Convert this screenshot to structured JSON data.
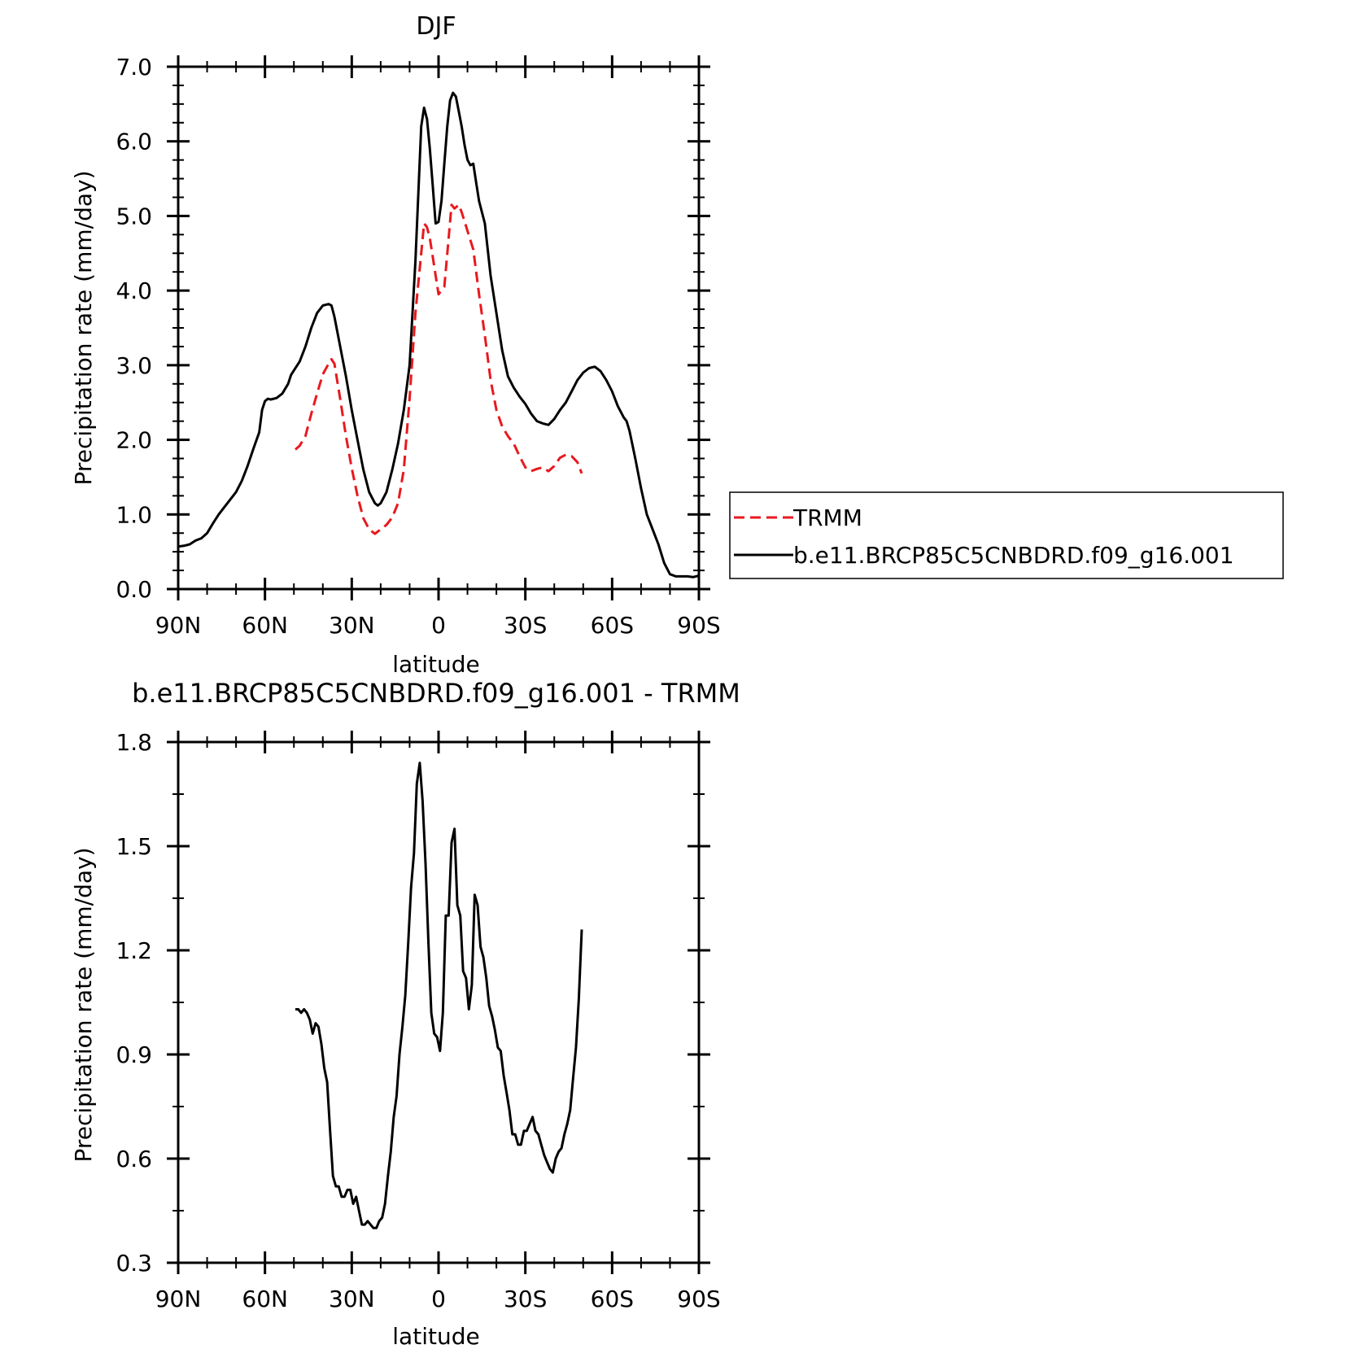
{
  "chart_data": [
    {
      "type": "line",
      "title": "DJF",
      "xlabel": "latitude",
      "ylabel": "Precipitation rate (mm/day)",
      "xlim": [
        90,
        -90
      ],
      "ylim": [
        0.0,
        7.0
      ],
      "x_ticks": [
        {
          "value": 90,
          "label": "90N"
        },
        {
          "value": 60,
          "label": "60N"
        },
        {
          "value": 30,
          "label": "30N"
        },
        {
          "value": 0,
          "label": "0"
        },
        {
          "value": -30,
          "label": "30S"
        },
        {
          "value": -60,
          "label": "60S"
        },
        {
          "value": -90,
          "label": "90S"
        }
      ],
      "y_ticks": [
        {
          "value": 0.0,
          "label": "0.0"
        },
        {
          "value": 1.0,
          "label": "1.0"
        },
        {
          "value": 2.0,
          "label": "2.0"
        },
        {
          "value": 3.0,
          "label": "3.0"
        },
        {
          "value": 4.0,
          "label": "4.0"
        },
        {
          "value": 5.0,
          "label": "5.0"
        },
        {
          "value": 6.0,
          "label": "6.0"
        },
        {
          "value": 7.0,
          "label": "7.0"
        }
      ],
      "legend": "right",
      "series": [
        {
          "name": "TRMM",
          "color": "#e8191e",
          "dash": "dashed",
          "x": [
            49.5,
            48,
            46,
            44,
            42,
            40,
            38,
            37,
            36,
            34,
            32,
            30,
            28,
            26,
            24,
            22,
            20,
            18,
            16,
            14,
            12,
            10,
            8,
            6,
            5,
            4,
            3,
            2,
            0,
            -2,
            -3.5,
            -4.5,
            -5.5,
            -7,
            -8,
            -10,
            -12,
            -14,
            -16,
            -18,
            -20,
            -22,
            -24,
            -26,
            -28,
            -30,
            -32,
            -34,
            -36,
            -38,
            -40,
            -42,
            -44,
            -46,
            -48,
            -49.5
          ],
          "values": [
            1.87,
            1.92,
            2.05,
            2.35,
            2.62,
            2.88,
            3.02,
            3.08,
            3.02,
            2.55,
            2.05,
            1.62,
            1.25,
            0.95,
            0.8,
            0.74,
            0.8,
            0.86,
            0.96,
            1.15,
            1.6,
            2.55,
            3.7,
            4.5,
            4.9,
            4.85,
            4.7,
            4.45,
            3.95,
            4.05,
            4.7,
            5.15,
            5.1,
            5.15,
            5.05,
            4.8,
            4.55,
            3.95,
            3.4,
            2.8,
            2.4,
            2.18,
            2.05,
            1.95,
            1.78,
            1.63,
            1.58,
            1.61,
            1.63,
            1.58,
            1.65,
            1.76,
            1.8,
            1.78,
            1.7,
            1.55
          ]
        },
        {
          "name": "b.e11.BRCP85C5CNBDRD.f09_g16.001",
          "color": "#000000",
          "dash": "solid",
          "x": [
            90,
            88,
            86,
            84,
            82,
            80,
            78,
            76,
            74,
            72,
            70,
            68,
            66,
            64,
            62,
            61,
            60,
            59,
            58,
            56,
            54,
            52,
            51,
            50,
            48,
            46,
            44,
            42,
            40,
            38,
            37,
            36,
            34,
            32,
            30,
            28,
            26,
            24,
            22,
            21,
            20,
            18,
            16,
            14,
            12,
            10,
            8,
            6,
            5,
            4,
            3,
            2,
            1,
            0,
            -1,
            -2,
            -3,
            -4,
            -5,
            -6,
            -7,
            -8,
            -9,
            -10,
            -11,
            -12,
            -13,
            -14,
            -16,
            -18,
            -20,
            -22,
            -24,
            -26,
            -28,
            -30,
            -32,
            -34,
            -36,
            -38,
            -40,
            -42,
            -44,
            -46,
            -48,
            -50,
            -52,
            -54,
            -56,
            -58,
            -60,
            -62,
            -64,
            -65,
            -66,
            -68,
            -70,
            -72,
            -74,
            -76,
            -78,
            -80,
            -82,
            -84,
            -86,
            -88,
            -90
          ],
          "values": [
            0.57,
            0.58,
            0.6,
            0.65,
            0.68,
            0.75,
            0.88,
            1.0,
            1.1,
            1.2,
            1.3,
            1.45,
            1.65,
            1.88,
            2.1,
            2.4,
            2.52,
            2.55,
            2.54,
            2.56,
            2.62,
            2.75,
            2.87,
            2.93,
            3.05,
            3.25,
            3.5,
            3.7,
            3.8,
            3.82,
            3.8,
            3.65,
            3.25,
            2.85,
            2.4,
            2.0,
            1.6,
            1.3,
            1.15,
            1.12,
            1.15,
            1.3,
            1.6,
            1.95,
            2.4,
            3.0,
            4.4,
            6.2,
            6.45,
            6.3,
            5.9,
            5.4,
            4.9,
            4.92,
            5.2,
            5.7,
            6.2,
            6.55,
            6.65,
            6.6,
            6.4,
            6.2,
            5.95,
            5.75,
            5.68,
            5.7,
            5.45,
            5.2,
            4.9,
            4.2,
            3.7,
            3.2,
            2.85,
            2.7,
            2.58,
            2.48,
            2.35,
            2.25,
            2.22,
            2.2,
            2.28,
            2.4,
            2.5,
            2.65,
            2.8,
            2.9,
            2.96,
            2.98,
            2.92,
            2.8,
            2.65,
            2.45,
            2.3,
            2.25,
            2.12,
            1.75,
            1.35,
            1.0,
            0.8,
            0.6,
            0.35,
            0.2,
            0.17,
            0.17,
            0.17,
            0.16,
            0.18
          ]
        }
      ]
    },
    {
      "type": "line",
      "title": "b.e11.BRCP85C5CNBDRD.f09_g16.001 - TRMM",
      "xlabel": "latitude",
      "ylabel": "Precipitation rate (mm/day)",
      "xlim": [
        90,
        -90
      ],
      "ylim": [
        0.3,
        1.8
      ],
      "x_ticks": [
        {
          "value": 90,
          "label": "90N"
        },
        {
          "value": 60,
          "label": "60N"
        },
        {
          "value": 30,
          "label": "30N"
        },
        {
          "value": 0,
          "label": "0"
        },
        {
          "value": -30,
          "label": "30S"
        },
        {
          "value": -60,
          "label": "60S"
        },
        {
          "value": -90,
          "label": "90S"
        }
      ],
      "y_ticks": [
        {
          "value": 0.3,
          "label": "0.3"
        },
        {
          "value": 0.6,
          "label": "0.6"
        },
        {
          "value": 0.9,
          "label": "0.9"
        },
        {
          "value": 1.2,
          "label": "1.2"
        },
        {
          "value": 1.5,
          "label": "1.5"
        },
        {
          "value": 1.8,
          "label": "1.8"
        }
      ],
      "series": [
        {
          "color": "#000000",
          "dash": "solid",
          "x": [
            49.5,
            48.5,
            47.5,
            46.5,
            45.5,
            44.5,
            43.5,
            42.5,
            41.5,
            40.5,
            39.5,
            38.5,
            37.5,
            36.5,
            35.5,
            34.5,
            33.5,
            32.5,
            31.5,
            30.5,
            29.5,
            28.5,
            27.5,
            26.5,
            25.5,
            24.5,
            23.5,
            22.5,
            21.5,
            20.5,
            19.5,
            18.5,
            17.5,
            16.5,
            15.5,
            14.5,
            13.5,
            12.5,
            11.5,
            10.5,
            9.5,
            8.5,
            7.5,
            6.5,
            5.5,
            4.5,
            3.5,
            2.5,
            1.5,
            0.5,
            -0.5,
            -1.5,
            -2.5,
            -3.5,
            -4.5,
            -5.5,
            -6.5,
            -7.5,
            -8.5,
            -9.5,
            -10.5,
            -11.5,
            -12.5,
            -13.5,
            -14.5,
            -15.5,
            -16.5,
            -17.5,
            -18.5,
            -19.5,
            -20.5,
            -21.5,
            -22.5,
            -23.5,
            -24.5,
            -25.5,
            -26.5,
            -27.5,
            -28.5,
            -29.5,
            -30.5,
            -31.5,
            -32.5,
            -33.5,
            -34.5,
            -35.5,
            -36.5,
            -37.5,
            -38.5,
            -39.5,
            -40.5,
            -41.5,
            -42.5,
            -43.5,
            -44.5,
            -45.5,
            -46.5,
            -47.5,
            -48.5,
            -49.5
          ],
          "values": [
            1.03,
            1.03,
            1.02,
            1.03,
            1.02,
            1.0,
            0.96,
            0.99,
            0.98,
            0.93,
            0.86,
            0.82,
            0.68,
            0.55,
            0.52,
            0.52,
            0.49,
            0.49,
            0.51,
            0.51,
            0.47,
            0.49,
            0.45,
            0.41,
            0.41,
            0.42,
            0.41,
            0.4,
            0.4,
            0.42,
            0.43,
            0.47,
            0.55,
            0.62,
            0.72,
            0.78,
            0.9,
            0.98,
            1.07,
            1.22,
            1.38,
            1.48,
            1.68,
            1.74,
            1.63,
            1.45,
            1.22,
            1.02,
            0.96,
            0.95,
            0.91,
            1.02,
            1.3,
            1.3,
            1.51,
            1.55,
            1.33,
            1.3,
            1.14,
            1.12,
            1.03,
            1.1,
            1.36,
            1.33,
            1.21,
            1.18,
            1.12,
            1.04,
            1.01,
            0.97,
            0.92,
            0.91,
            0.84,
            0.79,
            0.74,
            0.67,
            0.67,
            0.64,
            0.64,
            0.68,
            0.68,
            0.7,
            0.72,
            0.68,
            0.67,
            0.64,
            0.61,
            0.59,
            0.57,
            0.56,
            0.6,
            0.62,
            0.63,
            0.67,
            0.7,
            0.74,
            0.83,
            0.92,
            1.06,
            1.26
          ]
        }
      ]
    }
  ]
}
